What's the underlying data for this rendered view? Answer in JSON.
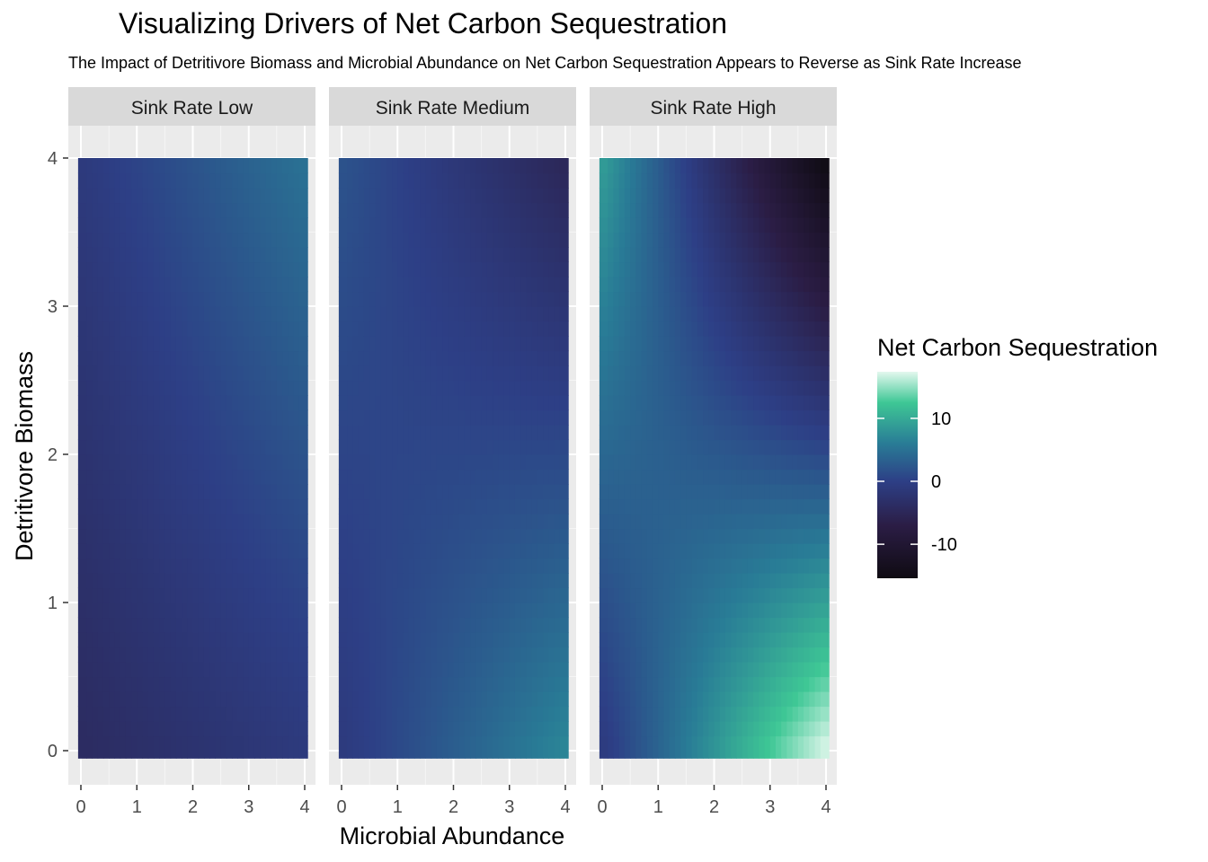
{
  "title": "Visualizing Drivers of Net Carbon Sequestration",
  "subtitle": "The Impact of Detritivore Biomass and Microbial Abundance on Net Carbon Sequestration Appears to Reverse as Sink Rate Increase",
  "chart_data": {
    "type": "heatmap",
    "title": "Visualizing Drivers of Net Carbon Sequestration",
    "subtitle": "The Impact of Detritivore Biomass and Microbial Abundance on Net Carbon Sequestration Appears to Reverse as Sink Rate Increase",
    "xlabel": "Microbial Abundance",
    "ylabel": "Detritivore Biomass",
    "xlim": [
      0,
      4
    ],
    "ylim": [
      0,
      4
    ],
    "x_ticks": [
      "0",
      "1",
      "2",
      "3",
      "4"
    ],
    "y_ticks": [
      "0",
      "1",
      "2",
      "3",
      "4"
    ],
    "grid": true,
    "legend": {
      "title": "Net Carbon Sequestration",
      "placement": "right",
      "ticks": [
        "10",
        "0",
        "-10"
      ],
      "tick_values": [
        10,
        0,
        -10
      ],
      "range": [
        -15.4,
        17.4
      ],
      "colors": {
        "low": "#0f0b12",
        "lowmid": "#2b1d45",
        "mid": "#2d3f86",
        "midhigh": "#297c96",
        "high": "#3ec795",
        "top": "#e3f8ee"
      }
    },
    "panels": [
      {
        "name": "Sink Rate Low",
        "corners": {
          "x0_y0": -4.0,
          "x4_y0": -1.0,
          "x0_y4": -1.0,
          "x4_y4": 5.0
        }
      },
      {
        "name": "Sink Rate Medium",
        "corners": {
          "x0_y0": -1.0,
          "x4_y0": 7.0,
          "x0_y4": 2.0,
          "x4_y4": -5.0
        }
      },
      {
        "name": "Sink Rate High",
        "corners": {
          "x0_y0": -1.0,
          "x4_y0": 17.4,
          "x0_y4": 9.0,
          "x4_y4": -15.4
        }
      }
    ]
  }
}
